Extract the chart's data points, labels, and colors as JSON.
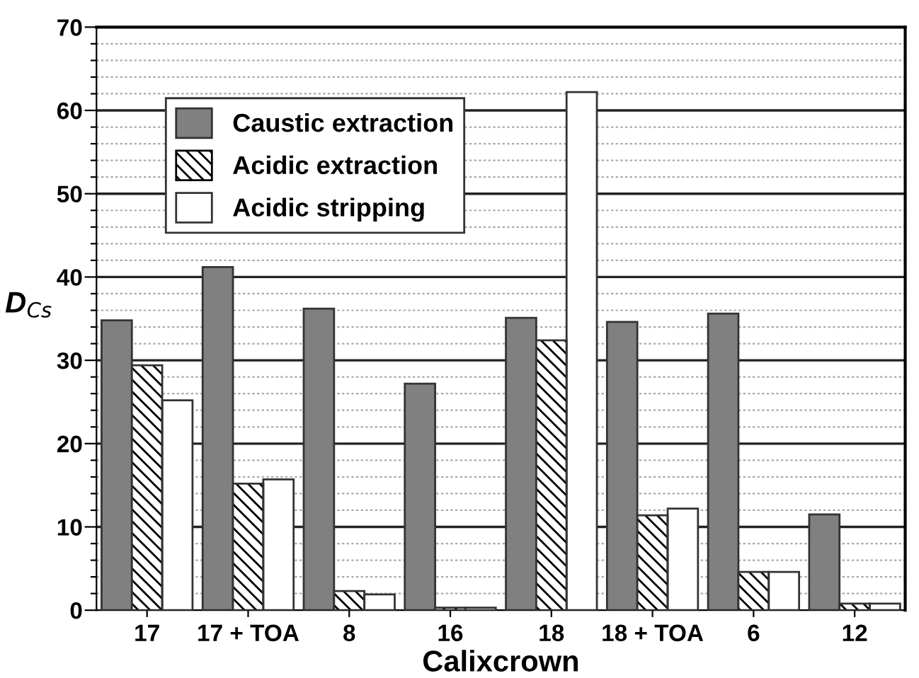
{
  "chart_data": {
    "type": "bar",
    "xlabel": "Calixcrown",
    "ylabel": "D$_{Cs}$",
    "categories": [
      "17",
      "17 + TOA",
      "8",
      "16",
      "18",
      "18 + TOA",
      "6",
      "12"
    ],
    "series": [
      {
        "name": "Caustic extraction",
        "color": "#808080",
        "values": [
          34.8,
          41.2,
          36.2,
          27.2,
          35.1,
          34.6,
          35.6,
          11.5
        ]
      },
      {
        "name": "Acidic extraction",
        "color": "#000000",
        "values": [
          29.4,
          15.2,
          2.3,
          0.3,
          32.4,
          11.4,
          4.6,
          0.8
        ]
      },
      {
        "name": "Acidic stripping",
        "color": "#ffffff",
        "values": [
          25.2,
          15.7,
          1.9,
          0.3,
          62.2,
          12.2,
          4.6,
          0.8
        ]
      }
    ],
    "ylim": [
      0,
      70
    ],
    "yticks": [
      0,
      {
        "value": 2,
        "label": null
      },
      {
        "value": 4,
        "label": null
      },
      {
        "value": 6,
        "label": null
      },
      {
        "value": 8,
        "label": null
      },
      10,
      {
        "value": 12,
        "label": null
      },
      {
        "value": 14,
        "label": null
      },
      {
        "value": 16,
        "label": null
      },
      {
        "value": 18,
        "label": null
      },
      20,
      {
        "value": 22,
        "label": null
      },
      {
        "value": 24,
        "label": null
      },
      {
        "value": 26,
        "label": null
      },
      {
        "value": 28,
        "label": null
      },
      30,
      {
        "value": 32,
        "label": null
      },
      {
        "value": 34,
        "label": null
      },
      {
        "value": 36,
        "label": null
      },
      {
        "value": 38,
        "label": null
      },
      40,
      {
        "value": 42,
        "label": null
      },
      {
        "value": 44,
        "label": null
      },
      {
        "value": 46,
        "label": null
      },
      {
        "value": 48,
        "label": null
      },
      50,
      {
        "value": 52,
        "label": null
      },
      {
        "value": 54,
        "label": null
      },
      {
        "value": 56,
        "label": null
      },
      {
        "value": 58,
        "label": null
      },
      60,
      {
        "value": 62,
        "label": null
      },
      {
        "value": 64,
        "label": null
      },
      {
        "value": 66,
        "label": null
      },
      {
        "value": 68,
        "label": null
      },
      70
    ],
    "grid": "y",
    "legend": "top left"
  }
}
